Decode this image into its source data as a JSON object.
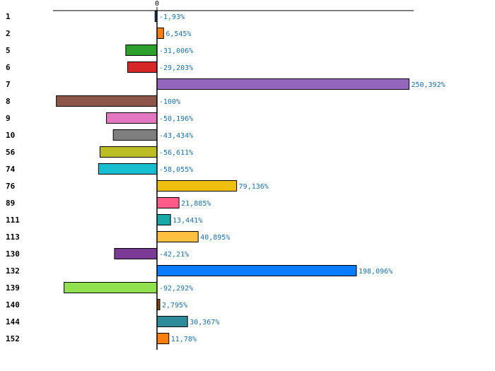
{
  "chart_data": {
    "type": "bar",
    "orientation": "horizontal",
    "title": "",
    "xlabel": "",
    "ylabel": "",
    "xlim": [
      -100,
      250.392
    ],
    "zero_tick_label": "0",
    "grid": false,
    "categories": [
      "1",
      "2",
      "5",
      "6",
      "7",
      "8",
      "9",
      "10",
      "56",
      "74",
      "76",
      "89",
      "111",
      "113",
      "130",
      "132",
      "139",
      "140",
      "144",
      "152"
    ],
    "values": [
      -1.93,
      6.545,
      -31.006,
      -29.203,
      250.392,
      -100,
      -50.196,
      -43.434,
      -56.611,
      -58.055,
      79.136,
      21.885,
      13.441,
      40.895,
      -42.21,
      198.096,
      -92.292,
      2.795,
      30.367,
      11.78
    ],
    "value_labels": [
      "-1,93%",
      "6,545%",
      "-31,006%",
      "-29,203%",
      "250,392%",
      "-100%",
      "-50,196%",
      "-43,434%",
      "-56,611%",
      "-58,055%",
      "79,136%",
      "21,885%",
      "13,441%",
      "40,895%",
      "-42,21%",
      "198,096%",
      "-92,292%",
      "2,795%",
      "30,367%",
      "11,78%"
    ],
    "colors": [
      "#1f3f7a",
      "#ff7f0e",
      "#2ca02c",
      "#d62728",
      "#9467bd",
      "#8c564b",
      "#e377c2",
      "#7f7f7f",
      "#bcbd22",
      "#17becf",
      "#f0c010",
      "#ff5c8a",
      "#17a8a8",
      "#ffbf40",
      "#7b3a96",
      "#0a7cff",
      "#90e050",
      "#8b4513",
      "#2e8b9a",
      "#ff7f0e"
    ]
  }
}
